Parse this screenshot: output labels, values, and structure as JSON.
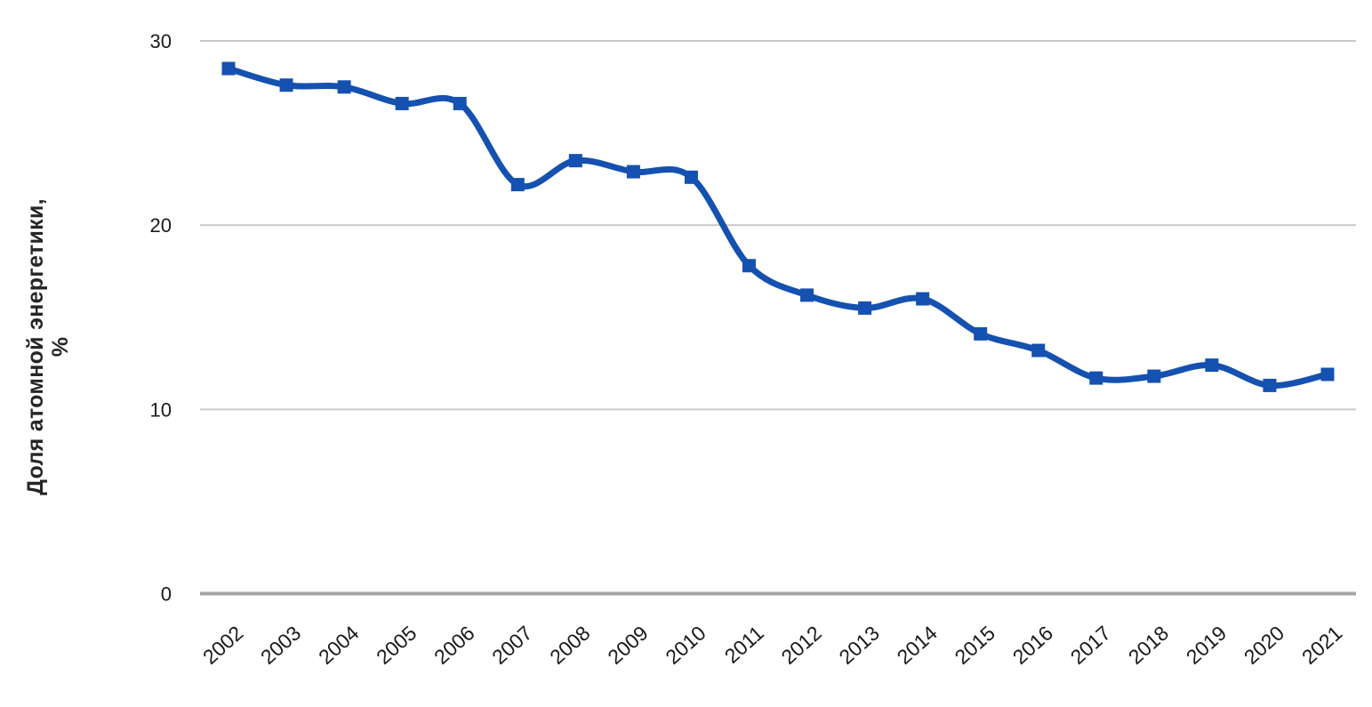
{
  "chart_data": {
    "type": "line",
    "title": "",
    "ylabel_lines": [
      "Доля атомной энергетики,",
      "%"
    ],
    "xlabel": "",
    "x": [
      "2002",
      "2003",
      "2004",
      "2005",
      "2006",
      "2007",
      "2008",
      "2009",
      "2010",
      "2011",
      "2012",
      "2013",
      "2014",
      "2015",
      "2016",
      "2017",
      "2018",
      "2019",
      "2020",
      "2021"
    ],
    "series": [
      {
        "name": "Доля атомной энергетики, %",
        "values": [
          28.5,
          27.6,
          27.5,
          26.6,
          26.6,
          22.2,
          23.5,
          22.9,
          22.6,
          17.8,
          16.2,
          15.5,
          16.0,
          14.1,
          13.2,
          11.7,
          11.8,
          12.4,
          11.3,
          11.9
        ]
      }
    ],
    "yticks": [
      0,
      10,
      20,
      30
    ],
    "ylim": [
      0,
      30
    ],
    "grid": "horizontal",
    "legend": "none",
    "smooth_line": true,
    "marker": "square",
    "colors": {
      "line": "#1451b0",
      "marker": "#1451b0",
      "gridline": "#c9c9c9",
      "axis_line": "#a6a6a6",
      "tick_text": "#1a1a1a",
      "title_text": "#262626",
      "background": "#ffffff"
    }
  }
}
